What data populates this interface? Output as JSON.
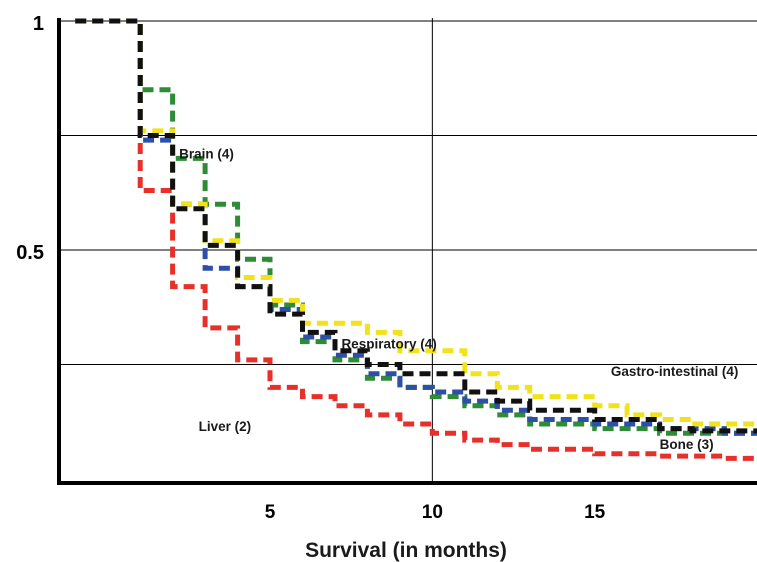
{
  "chart_data": {
    "type": "line",
    "step": true,
    "xlabel": "Survival (in months)",
    "ylabel": "",
    "xlim": [
      -1.5,
      20
    ],
    "ylim": [
      0,
      1
    ],
    "x_ticks": [
      5,
      10,
      15
    ],
    "y_ticks": [
      {
        "value": 1,
        "label": "1"
      },
      {
        "value": 0.5,
        "label": "0.5"
      }
    ],
    "grid": {
      "x": [
        10
      ],
      "y": [
        1,
        0.75,
        0.5,
        0.25
      ]
    },
    "colors": {
      "liver": "#e8302a",
      "brain": "#2e8b36",
      "respiratory": "#2d4fa8",
      "gi": "#f2e21c",
      "bone": "#111111"
    },
    "series": [
      {
        "key": "liver",
        "name": "Liver (2)",
        "color": "#e8302a",
        "points": [
          [
            -1,
            1
          ],
          [
            1,
            1
          ],
          [
            1,
            0.63
          ],
          [
            2,
            0.63
          ],
          [
            2,
            0.42
          ],
          [
            3,
            0.42
          ],
          [
            3,
            0.33
          ],
          [
            4,
            0.33
          ],
          [
            4,
            0.26
          ],
          [
            5,
            0.26
          ],
          [
            5,
            0.2
          ],
          [
            6,
            0.2
          ],
          [
            6,
            0.18
          ],
          [
            7,
            0.18
          ],
          [
            7,
            0.16
          ],
          [
            8,
            0.16
          ],
          [
            8,
            0.14
          ],
          [
            9,
            0.14
          ],
          [
            9,
            0.12
          ],
          [
            10,
            0.12
          ],
          [
            10,
            0.1
          ],
          [
            11,
            0.1
          ],
          [
            11,
            0.085
          ],
          [
            12,
            0.085
          ],
          [
            12,
            0.075
          ],
          [
            13,
            0.075
          ],
          [
            13,
            0.065
          ],
          [
            15,
            0.065
          ],
          [
            15,
            0.055
          ],
          [
            17,
            0.055
          ],
          [
            17,
            0.05
          ],
          [
            19,
            0.05
          ],
          [
            19,
            0.045
          ],
          [
            20,
            0.045
          ]
        ]
      },
      {
        "key": "brain",
        "name": "Brain (4)",
        "color": "#2e8b36",
        "points": [
          [
            -1,
            1
          ],
          [
            1,
            1
          ],
          [
            1,
            0.85
          ],
          [
            2,
            0.85
          ],
          [
            2,
            0.7
          ],
          [
            3,
            0.7
          ],
          [
            3,
            0.6
          ],
          [
            4,
            0.6
          ],
          [
            4,
            0.48
          ],
          [
            5,
            0.48
          ],
          [
            5,
            0.38
          ],
          [
            6,
            0.38
          ],
          [
            6,
            0.3
          ],
          [
            7,
            0.3
          ],
          [
            7,
            0.26
          ],
          [
            8,
            0.26
          ],
          [
            8,
            0.22
          ],
          [
            9,
            0.22
          ],
          [
            9,
            0.2
          ],
          [
            10,
            0.2
          ],
          [
            10,
            0.18
          ],
          [
            11,
            0.18
          ],
          [
            11,
            0.16
          ],
          [
            12,
            0.16
          ],
          [
            12,
            0.14
          ],
          [
            13,
            0.14
          ],
          [
            13,
            0.12
          ],
          [
            15,
            0.12
          ],
          [
            15,
            0.11
          ],
          [
            17,
            0.11
          ],
          [
            17,
            0.1
          ],
          [
            20,
            0.1
          ]
        ]
      },
      {
        "key": "respiratory",
        "name": "Respiratory (4)",
        "color": "#2d4fa8",
        "points": [
          [
            -1,
            1
          ],
          [
            1,
            1
          ],
          [
            1,
            0.74
          ],
          [
            2,
            0.74
          ],
          [
            2,
            0.6
          ],
          [
            3,
            0.6
          ],
          [
            3,
            0.46
          ],
          [
            4,
            0.46
          ],
          [
            4,
            0.42
          ],
          [
            5,
            0.42
          ],
          [
            5,
            0.37
          ],
          [
            6,
            0.37
          ],
          [
            6,
            0.31
          ],
          [
            7,
            0.31
          ],
          [
            7,
            0.27
          ],
          [
            8,
            0.27
          ],
          [
            8,
            0.23
          ],
          [
            9,
            0.23
          ],
          [
            9,
            0.2
          ],
          [
            10,
            0.2
          ],
          [
            10,
            0.19
          ],
          [
            11,
            0.19
          ],
          [
            11,
            0.17
          ],
          [
            12,
            0.17
          ],
          [
            12,
            0.15
          ],
          [
            13,
            0.15
          ],
          [
            13,
            0.13
          ],
          [
            15,
            0.13
          ],
          [
            15,
            0.12
          ],
          [
            17,
            0.12
          ],
          [
            17,
            0.11
          ],
          [
            19,
            0.11
          ],
          [
            19,
            0.1
          ],
          [
            20,
            0.1
          ]
        ]
      },
      {
        "key": "gi",
        "name": "Gastro-intestinal (4)",
        "color": "#f2e21c",
        "points": [
          [
            -1,
            1
          ],
          [
            1,
            1
          ],
          [
            1,
            0.76
          ],
          [
            2,
            0.76
          ],
          [
            2,
            0.6
          ],
          [
            3,
            0.6
          ],
          [
            3,
            0.52
          ],
          [
            4,
            0.52
          ],
          [
            4,
            0.44
          ],
          [
            5,
            0.44
          ],
          [
            5,
            0.39
          ],
          [
            6,
            0.39
          ],
          [
            6,
            0.34
          ],
          [
            8,
            0.34
          ],
          [
            8,
            0.32
          ],
          [
            9,
            0.32
          ],
          [
            9,
            0.28
          ],
          [
            11,
            0.28
          ],
          [
            11,
            0.23
          ],
          [
            12,
            0.23
          ],
          [
            12,
            0.2
          ],
          [
            13,
            0.2
          ],
          [
            13,
            0.18
          ],
          [
            15,
            0.18
          ],
          [
            15,
            0.16
          ],
          [
            16,
            0.16
          ],
          [
            16,
            0.14
          ],
          [
            17,
            0.14
          ],
          [
            17,
            0.13
          ],
          [
            18,
            0.13
          ],
          [
            18,
            0.12
          ],
          [
            20,
            0.12
          ]
        ]
      },
      {
        "key": "bone",
        "name": "Bone (3)",
        "color": "#111111",
        "points": [
          [
            -1,
            1
          ],
          [
            1,
            1
          ],
          [
            1,
            0.75
          ],
          [
            2,
            0.75
          ],
          [
            2,
            0.59
          ],
          [
            3,
            0.59
          ],
          [
            3,
            0.51
          ],
          [
            4,
            0.51
          ],
          [
            4,
            0.42
          ],
          [
            5,
            0.42
          ],
          [
            5,
            0.36
          ],
          [
            6,
            0.36
          ],
          [
            6,
            0.32
          ],
          [
            7,
            0.32
          ],
          [
            7,
            0.28
          ],
          [
            8,
            0.28
          ],
          [
            8,
            0.25
          ],
          [
            9,
            0.25
          ],
          [
            9,
            0.23
          ],
          [
            11,
            0.23
          ],
          [
            11,
            0.19
          ],
          [
            12,
            0.19
          ],
          [
            12,
            0.17
          ],
          [
            13,
            0.17
          ],
          [
            13,
            0.15
          ],
          [
            15,
            0.15
          ],
          [
            15,
            0.13
          ],
          [
            17,
            0.13
          ],
          [
            17,
            0.11
          ],
          [
            18,
            0.11
          ],
          [
            18,
            0.105
          ],
          [
            20,
            0.105
          ]
        ]
      }
    ],
    "annotations": [
      {
        "key": "brain",
        "text": "Brain (4)",
        "x": 2.2,
        "y": 0.7
      },
      {
        "key": "respiratory",
        "text": "Respiratory (4)",
        "x": 7.2,
        "y": 0.285
      },
      {
        "key": "gi",
        "text": "Gastro-intestinal (4)",
        "x": 15.5,
        "y": 0.225
      },
      {
        "key": "liver",
        "text": "Liver (2)",
        "x": 2.8,
        "y": 0.105
      },
      {
        "key": "bone",
        "text": "Bone (3)",
        "x": 17,
        "y": 0.065
      }
    ]
  }
}
